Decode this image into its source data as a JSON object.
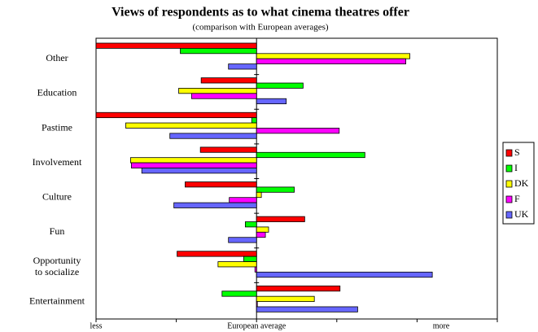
{
  "chart_data": {
    "type": "bar",
    "orientation": "horizontal",
    "title": "Views of respondents as to what cinema theatres offer",
    "subtitle": "(comparison with European averages)",
    "categories": [
      "Other",
      "Education",
      "Pastime",
      "Involvement",
      "Culture",
      "Fun",
      "Opportunity\nto socialize",
      "Entertainment"
    ],
    "series": [
      {
        "name": "S",
        "color": "#ff0000",
        "values": [
          -2.0,
          -0.69,
          -2.0,
          -0.7,
          -0.89,
          0.6,
          -0.99,
          1.04
        ]
      },
      {
        "name": "I",
        "color": "#00ff00",
        "values": [
          -0.95,
          0.58,
          -0.06,
          1.35,
          0.47,
          -0.14,
          -0.16,
          -0.43
        ]
      },
      {
        "name": "DK",
        "color": "#ffff00",
        "values": [
          1.91,
          -0.97,
          -1.63,
          -1.57,
          0.06,
          0.15,
          -0.48,
          0.72
        ]
      },
      {
        "name": "F",
        "color": "#ff00ff",
        "values": [
          1.86,
          -0.81,
          1.03,
          -1.56,
          -0.34,
          0.11,
          -0.02,
          0.01
        ]
      },
      {
        "name": "UK",
        "color": "#6666ff",
        "values": [
          -0.35,
          0.37,
          -1.08,
          -1.43,
          -1.03,
          -0.35,
          2.19,
          1.26
        ]
      }
    ],
    "xlim": [
      -2,
      3
    ],
    "xticks": [
      -2,
      -1,
      0,
      1,
      2,
      3
    ],
    "x_labels": [
      {
        "value": -2,
        "label": "less"
      },
      {
        "value": 0,
        "label": "European average"
      },
      {
        "value": 2.3,
        "label": "more"
      }
    ],
    "legend": "right"
  }
}
